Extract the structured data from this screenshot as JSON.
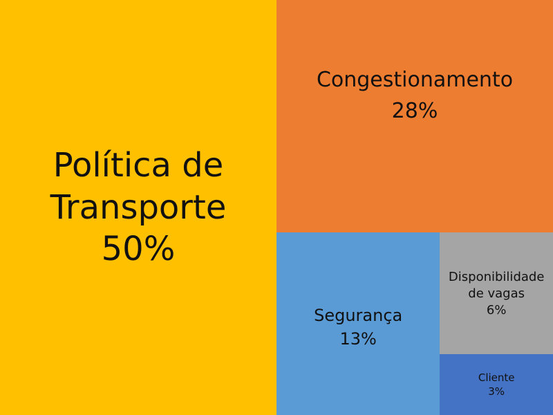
{
  "chart_data": {
    "type": "treemap",
    "title": "",
    "items": [
      {
        "label": "Política de Transporte",
        "display_label": "Política de\nTransporte",
        "value": 50,
        "value_label": "50%",
        "color": "#FFC000"
      },
      {
        "label": "Congestionamento",
        "display_label": "Congestionamento",
        "value": 28,
        "value_label": "28%",
        "color": "#ED7D31"
      },
      {
        "label": "Segurança",
        "display_label": "Segurança",
        "value": 13,
        "value_label": "13%",
        "color": "#5B9BD5"
      },
      {
        "label": "Disponibilidade vagas",
        "display_label": "Disponibilidade\nde vagas",
        "value": 6,
        "value_label": "6%",
        "color": "#A5A5A5"
      },
      {
        "label": "Cliente",
        "display_label": "Cliente",
        "value": 3,
        "value_label": "3%",
        "color": "#4472C4"
      }
    ]
  }
}
